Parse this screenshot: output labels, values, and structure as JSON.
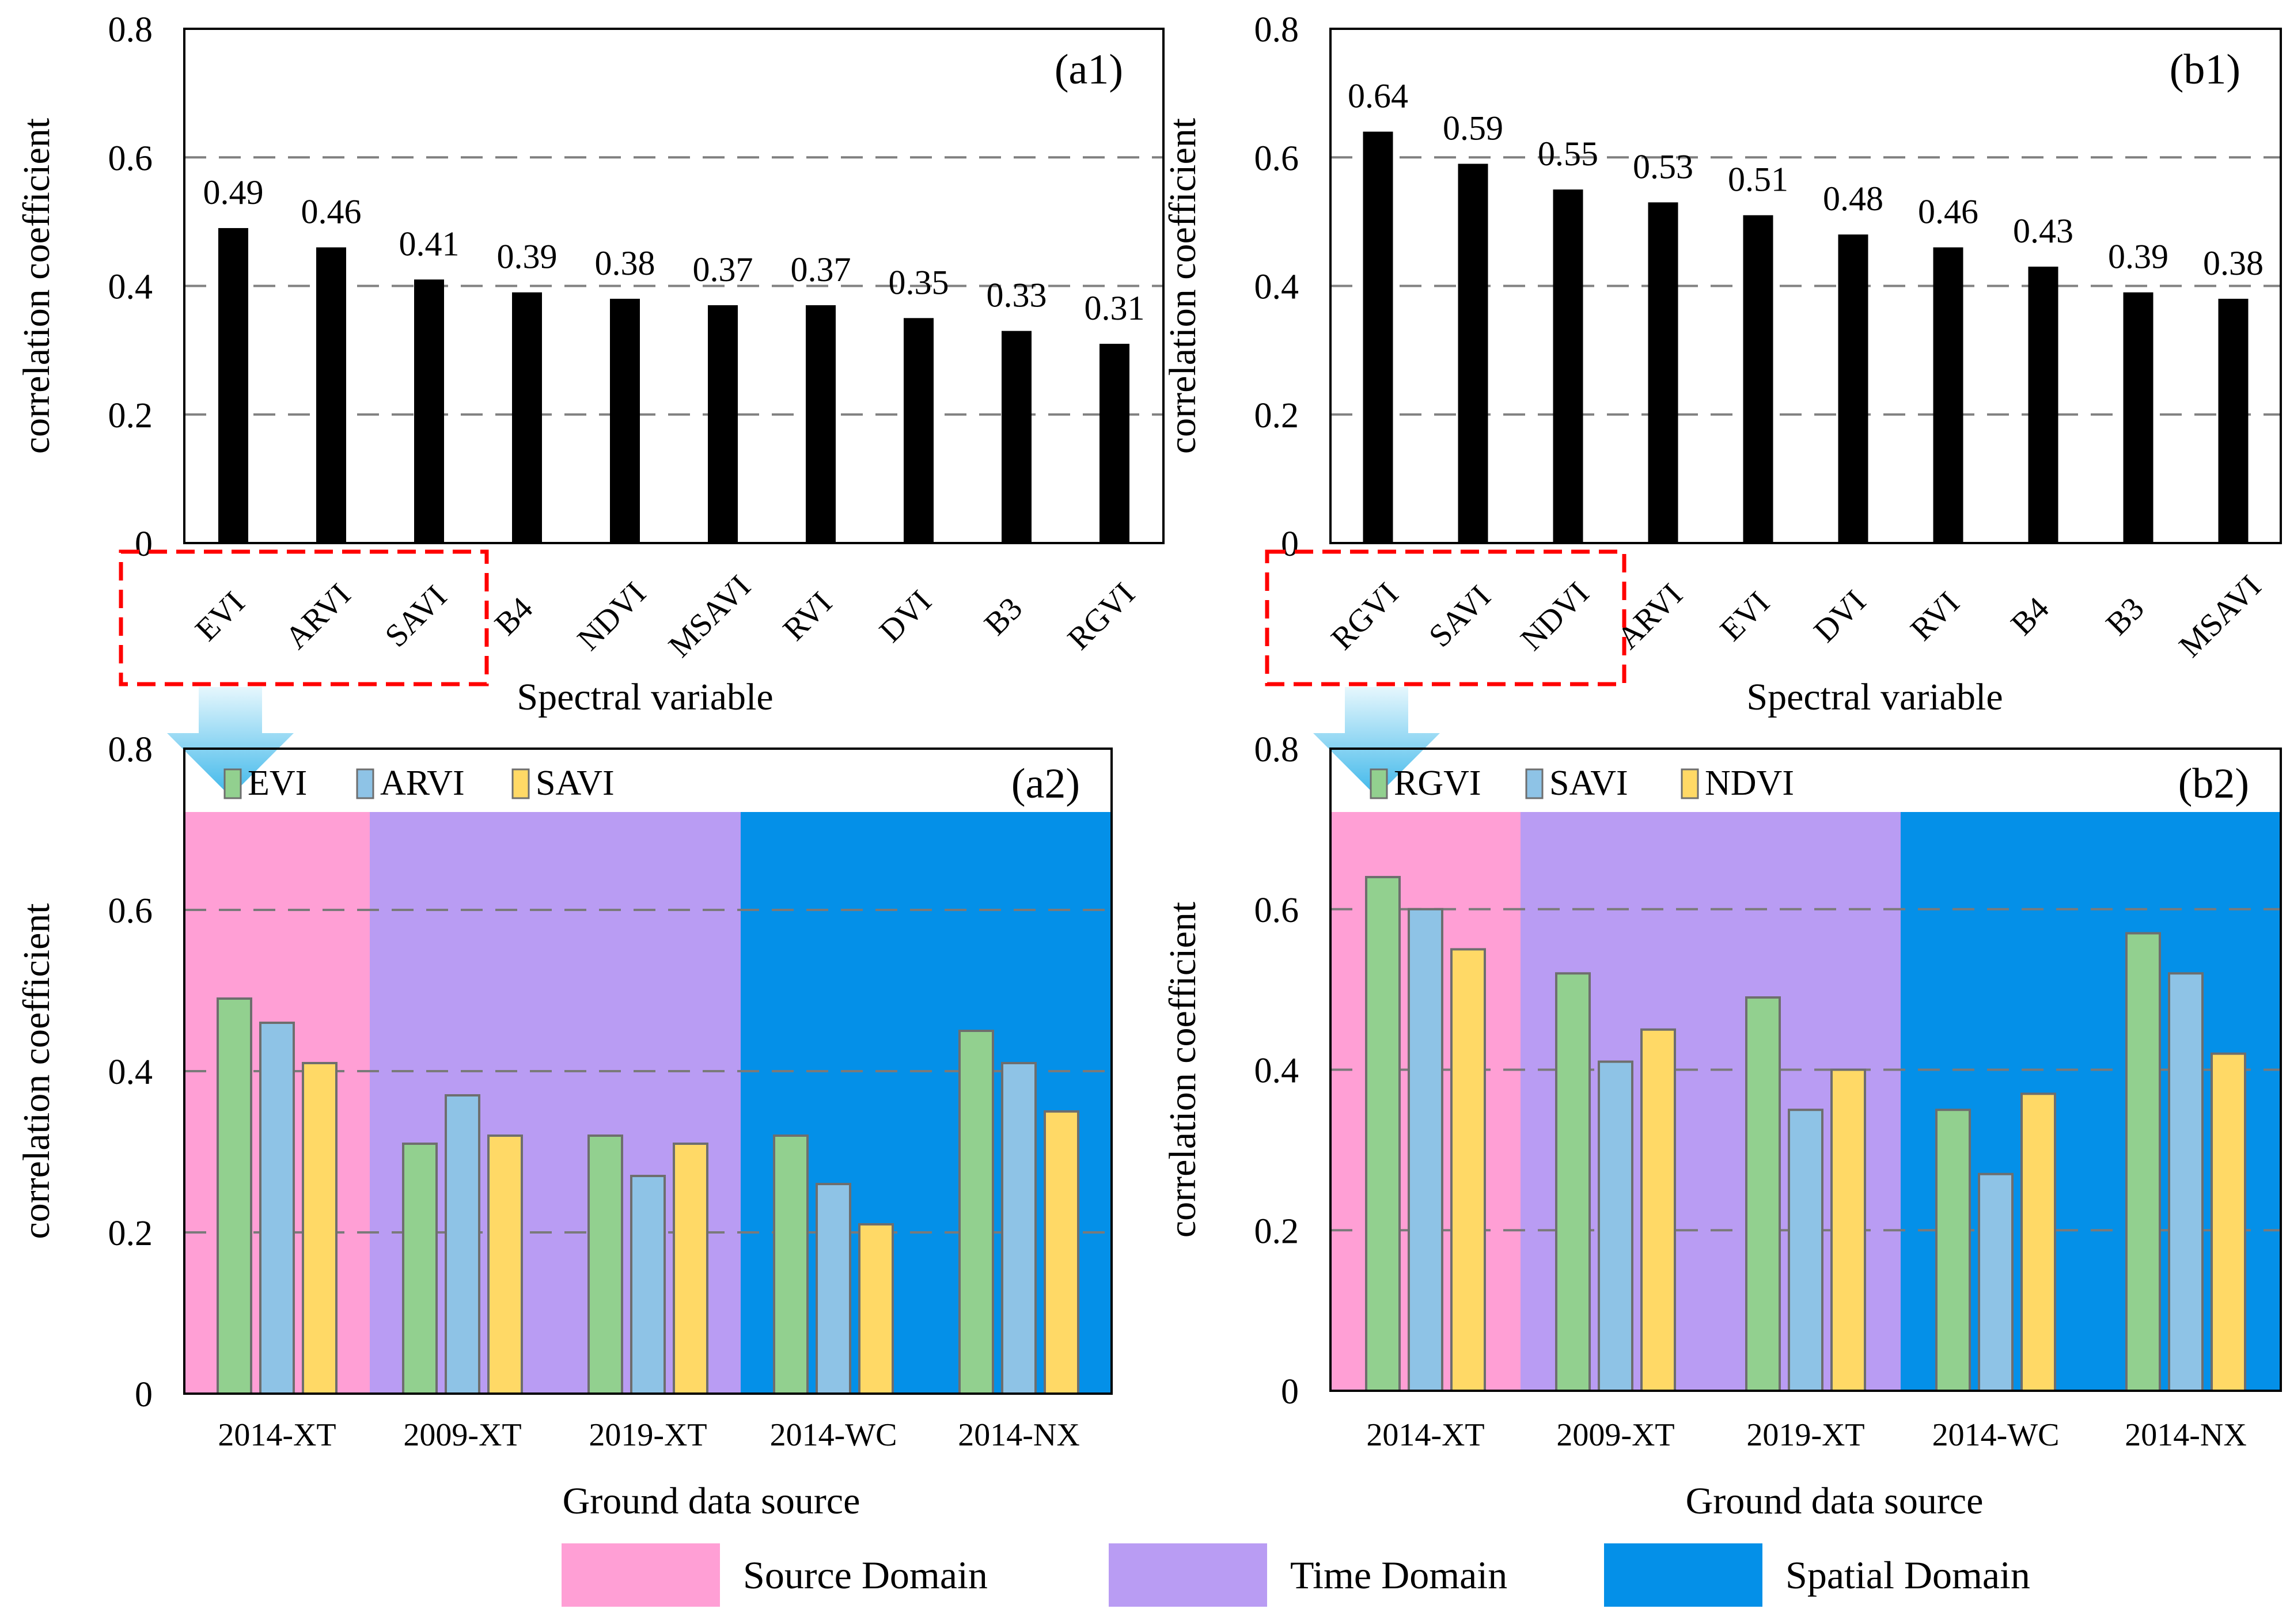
{
  "colors": {
    "bar_top": "#000000",
    "series": [
      "#92d08f",
      "#8ec3e6",
      "#ffd966"
    ],
    "source_domain": "#ff9fd5",
    "time_domain": "#b99cf3",
    "spatial_domain": "#0490e8",
    "highlight_box": "#ff0000",
    "arrow": "#5fc8ef",
    "grid": "#808080"
  },
  "chart_data": [
    {
      "id": "a1",
      "type": "bar",
      "panel_label": "(a1)",
      "title": "",
      "xlabel": "Spectral variable",
      "ylabel": "correlation coefficient",
      "ylim": [
        0,
        0.8
      ],
      "yticks": [
        "0",
        "0.2",
        "0.4",
        "0.6",
        "0.8"
      ],
      "grid": true,
      "categories": [
        "EVI",
        "ARVI",
        "SAVI",
        "B4",
        "NDVI",
        "MSAVI",
        "RVI",
        "DVI",
        "B3",
        "RGVI"
      ],
      "values": [
        0.49,
        0.46,
        0.41,
        0.39,
        0.38,
        0.37,
        0.37,
        0.35,
        0.33,
        0.31
      ],
      "value_labels": [
        "0.49",
        "0.46",
        "0.41",
        "0.39",
        "0.38",
        "0.37",
        "0.37",
        "0.35",
        "0.33",
        "0.31"
      ],
      "highlighted_categories": [
        "EVI",
        "ARVI",
        "SAVI"
      ]
    },
    {
      "id": "b1",
      "type": "bar",
      "panel_label": "(b1)",
      "title": "",
      "xlabel": "Spectral variable",
      "ylabel": "correlation coefficient",
      "ylim": [
        0,
        0.8
      ],
      "yticks": [
        "0",
        "0.2",
        "0.4",
        "0.6",
        "0.8"
      ],
      "grid": true,
      "categories": [
        "RGVI",
        "SAVI",
        "NDVI",
        "ARVI",
        "EVI",
        "DVI",
        "RVI",
        "B4",
        "B3",
        "MSAVI"
      ],
      "values": [
        0.64,
        0.59,
        0.55,
        0.53,
        0.51,
        0.48,
        0.46,
        0.43,
        0.39,
        0.38
      ],
      "value_labels": [
        "0.64",
        "0.59",
        "0.55",
        "0.53",
        "0.51",
        "0.48",
        "0.46",
        "0.43",
        "0.39",
        "0.38"
      ],
      "highlighted_categories": [
        "RGVI",
        "SAVI",
        "NDVI"
      ]
    },
    {
      "id": "a2",
      "type": "bar",
      "panel_label": "(a2)",
      "title": "",
      "xlabel": "Ground data source",
      "ylabel": "correlation coefficient",
      "ylim": [
        0,
        0.8
      ],
      "yticks": [
        "0",
        "0.2",
        "0.4",
        "0.6",
        "0.8"
      ],
      "grid": true,
      "legend_position": "top-left",
      "categories": [
        "2014-XT",
        "2009-XT",
        "2019-XT",
        "2014-WC",
        "2014-NX"
      ],
      "domains": [
        "source",
        "time",
        "time",
        "spatial",
        "spatial"
      ],
      "series": [
        {
          "name": "EVI",
          "values": [
            0.49,
            0.31,
            0.32,
            0.32,
            0.45
          ]
        },
        {
          "name": "ARVI",
          "values": [
            0.46,
            0.37,
            0.27,
            0.26,
            0.41
          ]
        },
        {
          "name": "SAVI",
          "values": [
            0.41,
            0.32,
            0.31,
            0.21,
            0.35
          ]
        }
      ]
    },
    {
      "id": "b2",
      "type": "bar",
      "panel_label": "(b2)",
      "title": "",
      "xlabel": "Ground data source",
      "ylabel": "correlation coefficient",
      "ylim": [
        0,
        0.8
      ],
      "yticks": [
        "0",
        "0.2",
        "0.4",
        "0.6",
        "0.8"
      ],
      "grid": true,
      "legend_position": "top-left",
      "categories": [
        "2014-XT",
        "2009-XT",
        "2019-XT",
        "2014-WC",
        "2014-NX"
      ],
      "domains": [
        "source",
        "time",
        "time",
        "spatial",
        "spatial"
      ],
      "series": [
        {
          "name": "RGVI",
          "values": [
            0.64,
            0.52,
            0.49,
            0.35,
            0.57
          ]
        },
        {
          "name": "SAVI",
          "values": [
            0.6,
            0.41,
            0.35,
            0.27,
            0.52
          ]
        },
        {
          "name": "NDVI",
          "values": [
            0.55,
            0.45,
            0.4,
            0.37,
            0.42
          ]
        }
      ]
    }
  ],
  "domain_legend": [
    {
      "key": "source",
      "label": "Source Domain"
    },
    {
      "key": "time",
      "label": "Time Domain"
    },
    {
      "key": "spatial",
      "label": "Spatial Domain"
    }
  ]
}
